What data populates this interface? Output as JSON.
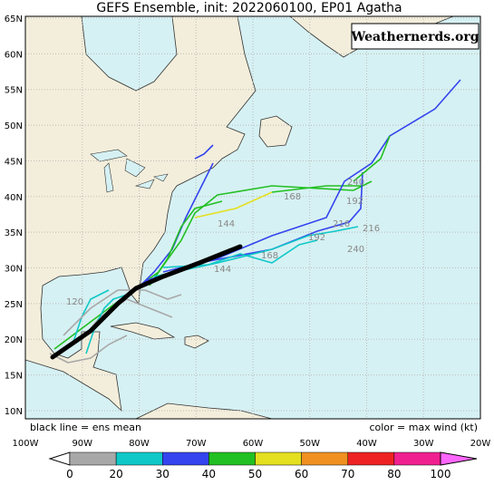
{
  "header": {
    "title": "GEFS Ensemble, init: 2022060100, EP01 Agatha",
    "watermark": "Weathernerds.org"
  },
  "map": {
    "lat_labels": [
      "65N",
      "60N",
      "55N",
      "50N",
      "45N",
      "40N",
      "35N",
      "30N",
      "25N",
      "20N",
      "15N",
      "10N"
    ],
    "lon_labels": [
      "100W",
      "90W",
      "80W",
      "70W",
      "60W",
      "50W",
      "40W",
      "30W",
      "20W"
    ],
    "track_labels": [
      "144",
      "168",
      "192",
      "240",
      "216",
      "192",
      "216",
      "240",
      "144",
      "168",
      "120"
    ],
    "note_left": "black line = ens mean",
    "note_right": "color = max wind (kt)"
  },
  "colorbar": {
    "labels": [
      0,
      20,
      30,
      40,
      50,
      60,
      70,
      80,
      100
    ],
    "colors": [
      "#a8a8a8",
      "#10c8c8",
      "#3444ee",
      "#22c022",
      "#e4e020",
      "#f09020",
      "#ee2222",
      "#f02090",
      "#ff66ff"
    ]
  }
}
